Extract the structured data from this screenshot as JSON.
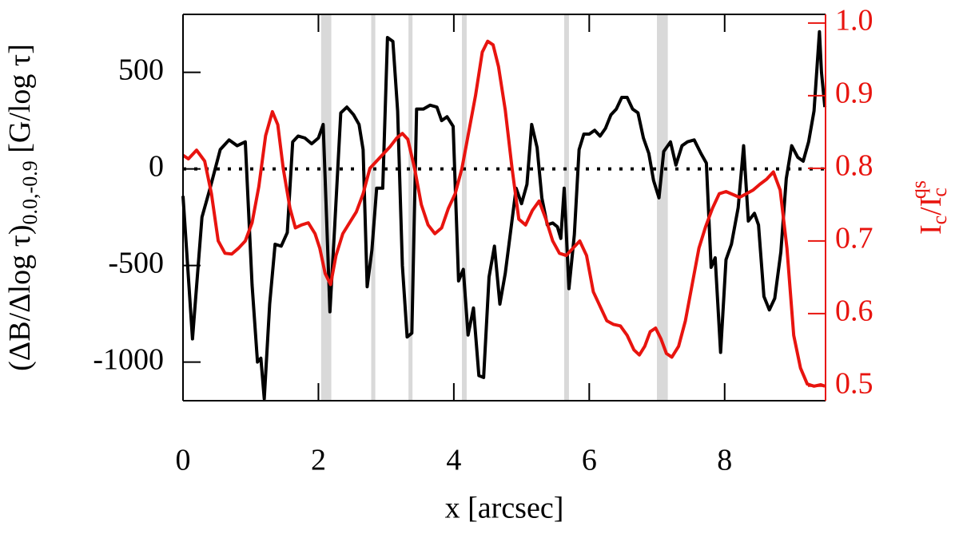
{
  "chart_data": {
    "type": "line",
    "xlabel": "x [arcsec]",
    "ylabel": {
      "main": "(ΔB/Δlog τ)",
      "sub": "0.0,-0.9",
      "unit": " [G/log τ]"
    },
    "y2label": {
      "base": "I",
      "sub": "c",
      "mid": "/I",
      "sub2": "c",
      "sup": "qs"
    },
    "xlim": [
      0,
      9.49
    ],
    "xticks": [
      0,
      2,
      4,
      6,
      8
    ],
    "ylim": [
      -1200,
      800
    ],
    "yticks": [
      -1000,
      -500,
      0,
      500
    ],
    "y2lim": [
      0.48,
      1.012
    ],
    "y2ticks": [
      0.5,
      0.6,
      0.7,
      0.8,
      0.9,
      {
        "value": 1,
        "label": "1.0"
      }
    ],
    "y2color": "#e8140f",
    "hline": 0,
    "shaded_regions": [
      [
        2.04,
        2.19
      ],
      [
        2.78,
        2.84
      ],
      [
        3.33,
        3.39
      ],
      [
        4.12,
        4.19
      ],
      [
        5.63,
        5.7
      ],
      [
        7.0,
        7.16
      ]
    ],
    "series": [
      {
        "color": "#000000",
        "axis": "y",
        "x": [
          0.0,
          0.14,
          0.28,
          0.4,
          0.55,
          0.68,
          0.8,
          0.92,
          1.02,
          1.1,
          1.15,
          1.2,
          1.28,
          1.36,
          1.45,
          1.54,
          1.62,
          1.7,
          1.8,
          1.9,
          2.0,
          2.07,
          2.12,
          2.17,
          2.24,
          2.33,
          2.42,
          2.52,
          2.6,
          2.66,
          2.72,
          2.79,
          2.86,
          2.95,
          3.02,
          3.1,
          3.17,
          3.24,
          3.31,
          3.38,
          3.45,
          3.55,
          3.65,
          3.75,
          3.82,
          3.9,
          3.99,
          4.07,
          4.14,
          4.21,
          4.29,
          4.37,
          4.44,
          4.52,
          4.6,
          4.68,
          4.76,
          4.84,
          4.92,
          5.0,
          5.08,
          5.15,
          5.23,
          5.3,
          5.38,
          5.46,
          5.53,
          5.58,
          5.63,
          5.7,
          5.78,
          5.85,
          5.92,
          6.0,
          6.08,
          6.16,
          6.24,
          6.32,
          6.4,
          6.48,
          6.56,
          6.64,
          6.72,
          6.8,
          6.88,
          6.95,
          7.03,
          7.1,
          7.2,
          7.28,
          7.37,
          7.45,
          7.55,
          7.65,
          7.73,
          7.8,
          7.86,
          7.94,
          8.02,
          8.1,
          8.2,
          8.28,
          8.35,
          8.44,
          8.5,
          8.58,
          8.66,
          8.74,
          8.83,
          8.91,
          8.99,
          9.08,
          9.16,
          9.24,
          9.32,
          9.4,
          9.43,
          9.48
        ],
        "values": [
          -140,
          -880,
          -250,
          -100,
          100,
          150,
          120,
          140,
          -600,
          -1000,
          -980,
          -1190,
          -700,
          -390,
          -400,
          -330,
          140,
          170,
          160,
          130,
          160,
          230,
          -250,
          -740,
          -300,
          290,
          320,
          280,
          230,
          100,
          -610,
          -420,
          -100,
          -100,
          680,
          660,
          300,
          -500,
          -870,
          -850,
          310,
          310,
          330,
          320,
          250,
          270,
          220,
          -580,
          -520,
          -860,
          -720,
          -1070,
          -1080,
          -560,
          -400,
          -700,
          -540,
          -320,
          -100,
          -180,
          -80,
          230,
          110,
          -150,
          -290,
          -280,
          -300,
          -360,
          -100,
          -620,
          -340,
          100,
          180,
          180,
          200,
          170,
          210,
          280,
          310,
          370,
          370,
          310,
          290,
          160,
          80,
          -60,
          -150,
          90,
          140,
          20,
          120,
          140,
          150,
          80,
          30,
          -510,
          -460,
          -950,
          -470,
          -390,
          -200,
          120,
          -270,
          -230,
          -290,
          -660,
          -730,
          -670,
          -430,
          -50,
          120,
          60,
          40,
          140,
          300,
          710,
          500,
          320
        ]
      },
      {
        "color": "#e8140f",
        "axis": "y2",
        "x": [
          0.0,
          0.08,
          0.2,
          0.32,
          0.42,
          0.52,
          0.62,
          0.72,
          0.82,
          0.92,
          1.02,
          1.12,
          1.22,
          1.32,
          1.4,
          1.48,
          1.58,
          1.66,
          1.75,
          1.85,
          1.95,
          2.02,
          2.1,
          2.18,
          2.26,
          2.36,
          2.46,
          2.56,
          2.66,
          2.76,
          2.86,
          2.96,
          3.06,
          3.16,
          3.24,
          3.32,
          3.42,
          3.52,
          3.62,
          3.72,
          3.82,
          3.92,
          4.02,
          4.12,
          4.22,
          4.32,
          4.42,
          4.5,
          4.58,
          4.66,
          4.76,
          4.86,
          4.96,
          5.06,
          5.16,
          5.26,
          5.36,
          5.46,
          5.56,
          5.66,
          5.76,
          5.86,
          5.96,
          6.06,
          6.16,
          6.26,
          6.36,
          6.46,
          6.56,
          6.66,
          6.74,
          6.82,
          6.9,
          6.98,
          7.06,
          7.14,
          7.22,
          7.32,
          7.42,
          7.52,
          7.62,
          7.72,
          7.82,
          7.92,
          8.02,
          8.12,
          8.22,
          8.32,
          8.42,
          8.52,
          8.62,
          8.72,
          8.82,
          8.92,
          9.02,
          9.12,
          9.22,
          9.32,
          9.42,
          9.48
        ],
        "values": [
          0.818,
          0.813,
          0.825,
          0.81,
          0.765,
          0.7,
          0.683,
          0.682,
          0.69,
          0.7,
          0.725,
          0.775,
          0.845,
          0.878,
          0.86,
          0.8,
          0.745,
          0.718,
          0.722,
          0.725,
          0.71,
          0.69,
          0.655,
          0.64,
          0.68,
          0.71,
          0.725,
          0.74,
          0.765,
          0.8,
          0.81,
          0.82,
          0.83,
          0.842,
          0.848,
          0.84,
          0.8,
          0.75,
          0.722,
          0.71,
          0.718,
          0.745,
          0.765,
          0.8,
          0.85,
          0.9,
          0.96,
          0.975,
          0.97,
          0.94,
          0.88,
          0.8,
          0.73,
          0.722,
          0.742,
          0.755,
          0.73,
          0.7,
          0.683,
          0.68,
          0.69,
          0.7,
          0.68,
          0.63,
          0.61,
          0.59,
          0.585,
          0.583,
          0.57,
          0.55,
          0.543,
          0.555,
          0.575,
          0.58,
          0.565,
          0.545,
          0.54,
          0.555,
          0.59,
          0.64,
          0.69,
          0.72,
          0.745,
          0.765,
          0.768,
          0.764,
          0.76,
          0.765,
          0.77,
          0.778,
          0.785,
          0.795,
          0.77,
          0.69,
          0.57,
          0.525,
          0.503,
          0.5,
          0.502,
          0.5
        ]
      }
    ]
  }
}
